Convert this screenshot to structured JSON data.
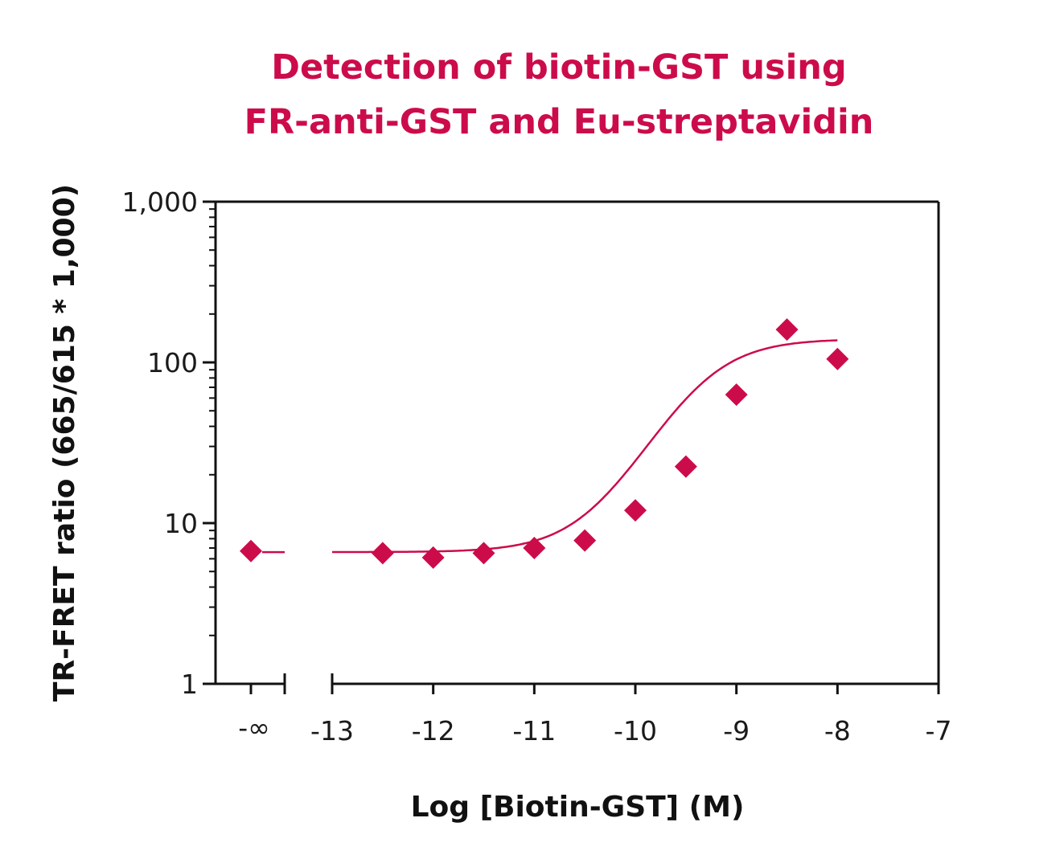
{
  "chart_data": {
    "type": "scatter",
    "title_lines": [
      "Detection of biotin-GST using",
      "FR-anti-GST and Eu-streptavidin"
    ],
    "xlabel": "Log [Biotin-GST] (M)",
    "ylabel": "TR-FRET ratio (665/615 * 1,000)",
    "yscale": "log",
    "ylim": [
      1,
      1000
    ],
    "xlim": [
      -13,
      -7
    ],
    "y_ticks": [
      {
        "v": 1,
        "label": "1"
      },
      {
        "v": 10,
        "label": "10"
      },
      {
        "v": 100,
        "label": "100"
      },
      {
        "v": 1000,
        "label": "1,000"
      }
    ],
    "x_ticks": [
      {
        "v": -13,
        "label": "-13"
      },
      {
        "v": -12,
        "label": "-12"
      },
      {
        "v": -11,
        "label": "-11"
      },
      {
        "v": -10,
        "label": "-10"
      },
      {
        "v": -9,
        "label": "-9"
      },
      {
        "v": -8,
        "label": "-8"
      },
      {
        "v": -7,
        "label": "-7"
      }
    ],
    "zero_label": "-∞",
    "zero_point": {
      "y": 6.7
    },
    "series": [
      {
        "name": "biotin-GST",
        "marker": "diamond",
        "color": "#cc0c4a",
        "x": [
          -12.5,
          -12,
          -11.5,
          -11,
          -10.5,
          -10,
          -9.5,
          -9,
          -8.5,
          -8
        ],
        "y": [
          6.5,
          6.1,
          6.5,
          7.0,
          7.8,
          12,
          22.5,
          63,
          160,
          105
        ]
      }
    ],
    "fit": {
      "bottom": 6.6,
      "top": 140,
      "logEC50": -9.35,
      "hill": 1.25
    }
  }
}
